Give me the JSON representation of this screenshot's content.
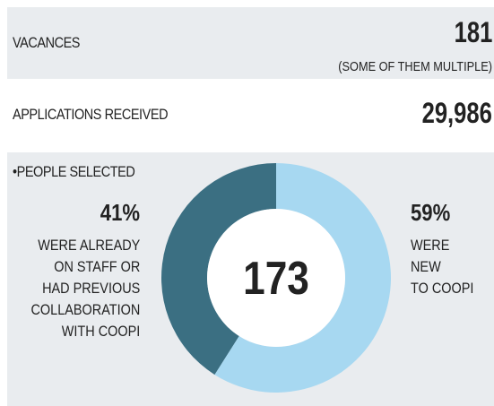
{
  "rows": [
    {
      "label": "VACANCES",
      "value": "181",
      "note": "(SOME OF THEM MULTIPLE)"
    },
    {
      "label": "APPLICATIONS RECEIVED",
      "value": "29,986"
    }
  ],
  "chart_data": {
    "type": "donut",
    "title": "•PEOPLE SELECTED",
    "center_label": "173",
    "categories": [
      "WERE ALREADY\nON STAFF OR\nHAD PREVIOUS\nCOLLABORATION\nWITH COOPI",
      "WERE\nNEW\nTO COOPI"
    ],
    "values": [
      41,
      59
    ],
    "value_labels": [
      "41%",
      "59%"
    ],
    "colors": [
      "#3b6f82",
      "#a7d8f1"
    ]
  }
}
